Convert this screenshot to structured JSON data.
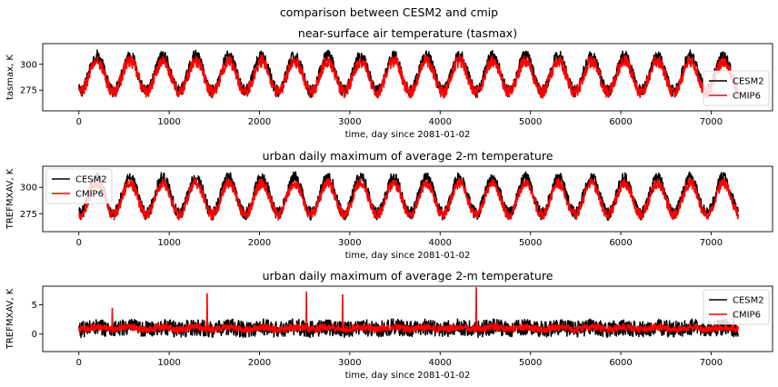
{
  "figure": {
    "suptitle": "comparison between CESM2 and cmip"
  },
  "chart_data": [
    {
      "type": "line",
      "title": "near-surface air temperature (tasmax)",
      "xlabel": "time, day since 2081-01-02",
      "ylabel": "tasmax, K",
      "xlim": [
        -400,
        7680
      ],
      "ylim": [
        255,
        320
      ],
      "xticks": [
        0,
        1000,
        2000,
        3000,
        4000,
        5000,
        6000,
        7000
      ],
      "yticks": [
        275,
        300
      ],
      "grid": false,
      "legend_placement": "right",
      "series": [
        {
          "name": "CESM2",
          "color": "#000000",
          "mean": 291,
          "amplitude": 17,
          "noise": 6,
          "spike_prob": 0.0,
          "x_start": 0,
          "x_end": 7300
        },
        {
          "name": "CMIP6",
          "color": "#ff0000",
          "mean": 288,
          "amplitude": 15,
          "noise": 6,
          "spike_prob": 0.0,
          "x_start": 0,
          "x_end": 7300
        }
      ],
      "period_days": 365,
      "peak_day": 200
    },
    {
      "type": "line",
      "title": "urban daily maximum of average 2-m temperature",
      "xlabel": "time, day since 2081-01-02",
      "ylabel": "TREFMXAV, K",
      "xlim": [
        -400,
        7680
      ],
      "ylim": [
        258,
        320
      ],
      "xticks": [
        0,
        1000,
        2000,
        3000,
        4000,
        5000,
        6000,
        7000
      ],
      "yticks": [
        275,
        300
      ],
      "grid": false,
      "legend_placement": "top-left",
      "series": [
        {
          "name": "CESM2",
          "color": "#000000",
          "mean": 292,
          "amplitude": 17,
          "noise": 6,
          "spike_prob": 0.0,
          "x_start": 0,
          "x_end": 7300
        },
        {
          "name": "CMIP6",
          "color": "#ff0000",
          "mean": 289,
          "amplitude": 15,
          "noise": 5,
          "spike_prob": 0.0,
          "x_start": 0,
          "x_end": 7300
        }
      ],
      "period_days": 365,
      "peak_day": 200
    },
    {
      "type": "line",
      "title": "urban daily maximum of average 2-m temperature",
      "xlabel": "time, day since 2081-01-02",
      "ylabel": "TREFMXAV, K",
      "xlim": [
        -400,
        7680
      ],
      "ylim": [
        -3,
        8.2
      ],
      "xticks": [
        0,
        1000,
        2000,
        3000,
        4000,
        5000,
        6000,
        7000
      ],
      "yticks": [
        0,
        5
      ],
      "grid": false,
      "legend_placement": "top-right",
      "series": [
        {
          "name": "CESM2",
          "color": "#000000",
          "mean": 1.0,
          "amplitude": 0.2,
          "noise": 1.4,
          "spike_prob": 0.0,
          "x_start": 0,
          "x_end": 7300
        },
        {
          "name": "CMIP6",
          "color": "#ff0000",
          "mean": 1.0,
          "amplitude": 0.2,
          "noise": 0.6,
          "spike_prob": 0.01,
          "x_start": 0,
          "x_end": 7300
        }
      ],
      "spikes_cmip6": [
        [
          370,
          4.5
        ],
        [
          1420,
          7.0
        ],
        [
          2520,
          7.3
        ],
        [
          2920,
          6.8
        ],
        [
          4400,
          8.0
        ],
        [
          7250,
          3.5
        ]
      ],
      "period_days": 365,
      "peak_day": 200
    }
  ]
}
